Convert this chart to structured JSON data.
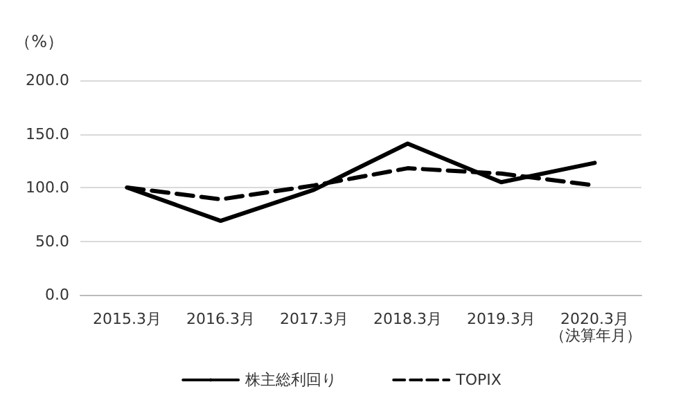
{
  "chart_data": {
    "type": "line",
    "ylabel": "（%）",
    "xlabel": "（決算年月）",
    "categories": [
      "2015.3月",
      "2016.3月",
      "2017.3月",
      "2018.3月",
      "2019.3月",
      "2020.3月"
    ],
    "series": [
      {
        "name": "株主総利回り",
        "color": "#000000",
        "line_style": "solid",
        "values": [
          100,
          69,
          98,
          141,
          105,
          123
        ]
      },
      {
        "name": "TOPIX",
        "color": "#000000",
        "line_style": "dashed",
        "values": [
          100,
          89,
          102,
          118,
          113,
          102
        ]
      }
    ],
    "ylim": [
      0,
      200
    ],
    "yticks": [
      {
        "value": 0,
        "label": "0.0"
      },
      {
        "value": 50,
        "label": "50.0"
      },
      {
        "value": 100,
        "label": "100.0"
      },
      {
        "value": 150,
        "label": "150.0"
      },
      {
        "value": 200,
        "label": "200.0"
      }
    ],
    "grid": "y",
    "legend": "bottom",
    "marker": "none"
  }
}
